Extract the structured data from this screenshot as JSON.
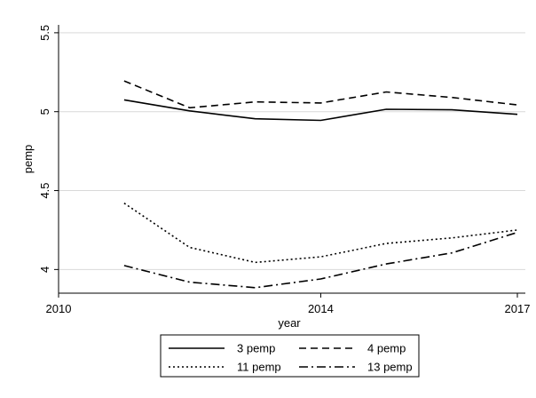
{
  "chart_data": {
    "type": "line",
    "title": "",
    "xlabel": "year",
    "ylabel": "pemp",
    "xlim": [
      2010,
      2017
    ],
    "ylim": [
      3.85,
      5.55
    ],
    "xticks": [
      2010,
      2014,
      2017
    ],
    "yticks": [
      4,
      4.5,
      5,
      5.5
    ],
    "grid": "horizontal",
    "legend_position": "bottom",
    "x": [
      2011,
      2012,
      2013,
      2014,
      2015,
      2016,
      2017
    ],
    "series": [
      {
        "name": "3 pemp",
        "style": "solid",
        "values": [
          5.075,
          5.005,
          4.955,
          4.945,
          5.015,
          5.012,
          4.983
        ]
      },
      {
        "name": "4 pemp",
        "style": "dashed",
        "values": [
          5.195,
          5.025,
          5.062,
          5.055,
          5.125,
          5.09,
          5.043
        ]
      },
      {
        "name": "11 pemp",
        "style": "dotted",
        "values": [
          4.42,
          4.14,
          4.045,
          4.08,
          4.165,
          4.2,
          4.25
        ]
      },
      {
        "name": "13 pemp",
        "style": "dash-dot",
        "values": [
          4.025,
          3.92,
          3.885,
          3.94,
          4.035,
          4.105,
          4.235
        ]
      }
    ]
  },
  "colors": {
    "line": "#000000",
    "grid": "#d9d9d9",
    "background": "#ffffff"
  }
}
